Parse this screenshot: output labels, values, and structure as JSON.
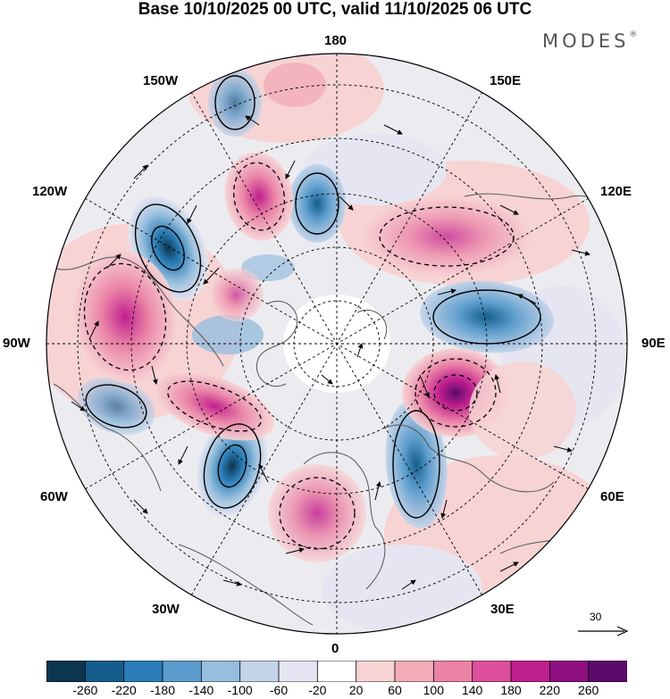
{
  "title": "Base 10/10/2025 00 UTC, valid 11/10/2025 06 UTC",
  "brand": {
    "name": "MODES",
    "mark": "®"
  },
  "longitude_labels": {
    "top": "180",
    "bottom": "0",
    "left": "90W",
    "right": "90E",
    "upper_left_1": "150W",
    "upper_right_1": "150E",
    "upper_left_2": "120W",
    "upper_right_2": "120E",
    "lower_left_1": "60W",
    "lower_right_1": "60E",
    "lower_left_2": "30W",
    "lower_right_2": "30E"
  },
  "reference_vector": {
    "value": "30"
  },
  "colorbar": {
    "tick_labels": [
      "-260",
      "-220",
      "-180",
      "-140",
      "-100",
      "-60",
      "-20",
      "20",
      "60",
      "100",
      "140",
      "180",
      "220",
      "260"
    ],
    "colors": [
      "#0c3550",
      "#155e8c",
      "#2a7db6",
      "#5b9ccc",
      "#97bedd",
      "#c2d3e8",
      "#e6e6f2",
      "#ffffff",
      "#f7d3d4",
      "#f2acb8",
      "#ea83a6",
      "#dd4f9c",
      "#c01f8e",
      "#8d0f80",
      "#5c0a6a"
    ]
  },
  "icons": {
    "reference-arrow": "reference-arrow-icon"
  }
}
